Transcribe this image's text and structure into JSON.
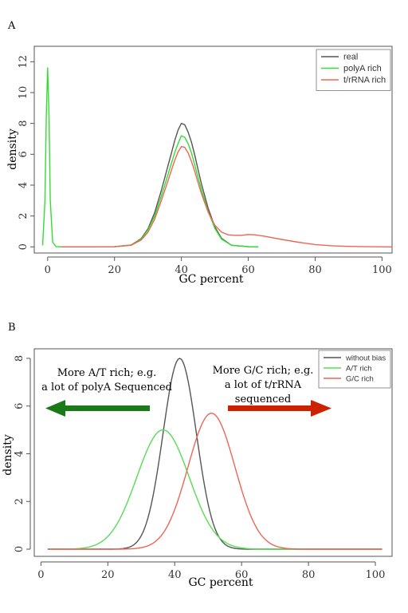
{
  "chart_data": [
    {
      "panel_label": "A",
      "type": "line",
      "xlabel": "GC percent",
      "ylabel": "density",
      "xlim": [
        -4,
        103
      ],
      "ylim": [
        -0.4,
        13
      ],
      "x_ticks": [
        0,
        20,
        40,
        60,
        80,
        100
      ],
      "y_ticks": [
        0,
        2,
        4,
        6,
        8,
        10,
        12
      ],
      "legend_position": "top-right",
      "series": [
        {
          "name": "real",
          "color": "#555555",
          "x": [
            4,
            20,
            25,
            28,
            30,
            32,
            34,
            35,
            36,
            37,
            38,
            39,
            40,
            41,
            42,
            43,
            44,
            45,
            46,
            48,
            50,
            52,
            55,
            60,
            63
          ],
          "y": [
            0,
            0.01,
            0.12,
            0.54,
            1.17,
            2.22,
            3.66,
            4.47,
            5.28,
            6.05,
            6.88,
            7.56,
            8.0,
            7.92,
            7.45,
            6.8,
            5.95,
            5.0,
            4.08,
            2.5,
            1.3,
            0.55,
            0.1,
            0.01,
            0
          ]
        },
        {
          "name": "polyA rich",
          "color": "#33dd33",
          "x": [
            -1.5,
            -0.8,
            -0.4,
            0,
            0.4,
            0.8,
            1.5,
            2.5,
            4,
            20,
            25,
            28,
            30,
            32,
            34,
            35,
            36,
            37,
            38,
            39,
            40,
            41,
            42,
            43,
            44,
            45,
            46,
            48,
            50,
            52,
            55,
            60,
            63
          ],
          "y": [
            0.1,
            3.0,
            8.5,
            11.6,
            8.5,
            3.0,
            0.3,
            0.02,
            0,
            0.01,
            0.12,
            0.5,
            1.1,
            2.0,
            3.3,
            4.0,
            4.7,
            5.4,
            6.1,
            6.7,
            7.2,
            7.1,
            6.7,
            6.1,
            5.3,
            4.5,
            3.7,
            2.3,
            1.2,
            0.5,
            0.1,
            0.01,
            0
          ]
        },
        {
          "name": "t/rRNA rich",
          "color": "#ee6655",
          "x": [
            4,
            20,
            25,
            28,
            30,
            32,
            34,
            35,
            36,
            37,
            38,
            39,
            40,
            41,
            42,
            43,
            44,
            45,
            46,
            48,
            50,
            52,
            54,
            56,
            58,
            60,
            62,
            65,
            70,
            75,
            80,
            85,
            90,
            95,
            103
          ],
          "y": [
            0,
            0.01,
            0.1,
            0.45,
            0.95,
            1.8,
            3.0,
            3.65,
            4.3,
            4.95,
            5.6,
            6.15,
            6.5,
            6.45,
            6.1,
            5.55,
            4.9,
            4.15,
            3.45,
            2.25,
            1.4,
            0.95,
            0.78,
            0.75,
            0.75,
            0.8,
            0.78,
            0.68,
            0.48,
            0.3,
            0.15,
            0.07,
            0.03,
            0.01,
            0
          ]
        }
      ]
    },
    {
      "panel_label": "B",
      "type": "line",
      "xlabel": "GC percent",
      "ylabel": "density",
      "xlim": [
        -2,
        105
      ],
      "ylim": [
        -0.3,
        8.4
      ],
      "x_ticks": [
        0,
        20,
        40,
        60,
        80,
        100
      ],
      "y_ticks": [
        0,
        2,
        4,
        6,
        8
      ],
      "legend_position": "top-right",
      "series": [
        {
          "name": "without bias",
          "color": "#555555",
          "curve": "gaussian",
          "mean": 41.5,
          "sd": 5.0,
          "peak": 8.0,
          "x_range": [
            2,
            102
          ]
        },
        {
          "name": "A/T rich",
          "color": "#55dd55",
          "curve": "gaussian",
          "mean": 36.5,
          "sd": 7.8,
          "peak": 5.0,
          "x_range": [
            2,
            102
          ]
        },
        {
          "name": "G/C rich",
          "color": "#ee6655",
          "curve": "gaussian",
          "mean": 51.0,
          "sd": 7.0,
          "peak": 5.7,
          "x_range": [
            2,
            102
          ]
        }
      ],
      "annotations": {
        "left_text": [
          "More A/T rich; e.g.",
          "a lot of polyA Sequenced"
        ],
        "right_text": [
          "More G/C rich; e.g.",
          "a lot of t/rRNA",
          "sequenced"
        ],
        "left_arrow_color": "#1a7a1a",
        "right_arrow_color": "#cc2200"
      }
    }
  ]
}
